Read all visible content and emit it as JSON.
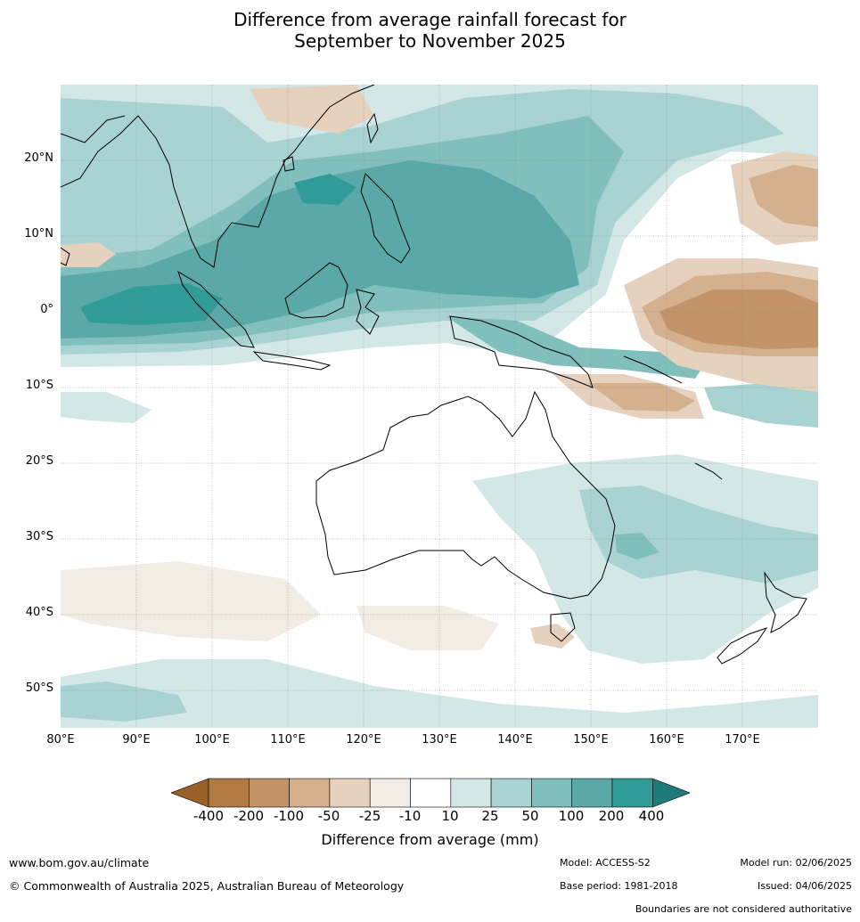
{
  "title": {
    "line1": "Difference from average rainfall forecast for",
    "line2": "September to November 2025"
  },
  "map": {
    "lat_labels": [
      "20°N",
      "10°N",
      "0°",
      "10°S",
      "20°S",
      "30°S",
      "40°S",
      "50°S"
    ],
    "lon_labels": [
      "80°E",
      "90°E",
      "100°E",
      "110°E",
      "120°E",
      "130°E",
      "140°E",
      "150°E",
      "160°E",
      "170°E"
    ]
  },
  "colorbar": {
    "ticks": [
      "-400",
      "-200",
      "-100",
      "-50",
      "-25",
      "-10",
      "10",
      "25",
      "50",
      "100",
      "200",
      "400"
    ],
    "colors": [
      "#99612a",
      "#b07a42",
      "#c29468",
      "#d4b08e",
      "#e5d1bd",
      "#f2ece5",
      "#ffffff",
      "#d3e8e6",
      "#a8d3d2",
      "#81bfbd",
      "#5aa9a8",
      "#319b98",
      "#1f7a7a"
    ],
    "label": "Difference from average (mm)"
  },
  "footer": {
    "website": "www.bom.gov.au/climate",
    "copyright": "© Commonwealth of Australia 2025, Australian Bureau of Meteorology",
    "model": "Model: ACCESS-S2",
    "base_period": "Base period: 1981-2018",
    "model_run": "Model run: 02/06/2025",
    "issued": "Issued: 04/06/2025",
    "boundaries": "Boundaries are not considered authoritative"
  }
}
